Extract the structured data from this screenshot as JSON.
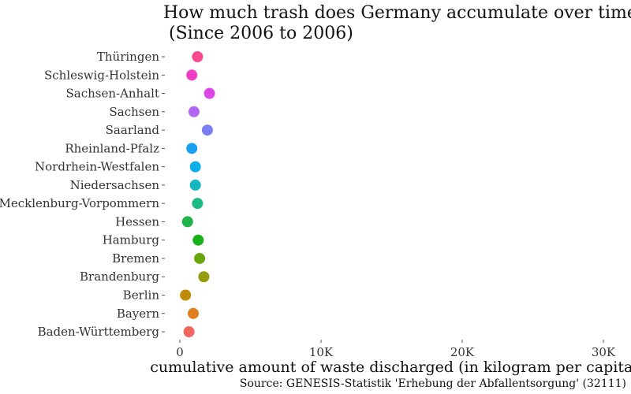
{
  "chart_data": {
    "type": "scatter",
    "title_lines": [
      "How much trash does Germany accumulate over time?",
      " (Since 2006 to 2006)"
    ],
    "xlabel": "cumulative amount of waste discharged (in kilogram per capita)",
    "caption": "Source: GENESIS-Statistik 'Erhebung der Abfallentsorgung' (32111)",
    "xlim": [
      0,
      30000
    ],
    "x_ticks": [
      0,
      10000,
      20000,
      30000
    ],
    "x_tick_labels": [
      "0",
      "10K",
      "20K",
      "30K"
    ],
    "grid": false,
    "legend": "none",
    "categories": [
      "Thüringen",
      "Schleswig-Holstein",
      "Sachsen-Anhalt",
      "Sachsen",
      "Saarland",
      "Rheinland-Pfalz",
      "Nordrhein-Westfalen",
      "Niedersachsen",
      "Mecklenburg-Vorpommern",
      "Hessen",
      "Hamburg",
      "Bremen",
      "Brandenburg",
      "Berlin",
      "Bayern",
      "Baden-Württemberg"
    ],
    "values": [
      1250,
      850,
      2100,
      1000,
      1950,
      850,
      1100,
      1100,
      1250,
      550,
      1300,
      1400,
      1700,
      400,
      950,
      650
    ],
    "colors": [
      "#F8488F",
      "#F23CC4",
      "#DC46E6",
      "#B367F5",
      "#7A7EF0",
      "#1AA0F0",
      "#0EAFE8",
      "#14B8BE",
      "#19BA84",
      "#1EB44A",
      "#19B01A",
      "#66A80A",
      "#969B0C",
      "#C08A0A",
      "#E17F1F",
      "#F0665F"
    ]
  }
}
